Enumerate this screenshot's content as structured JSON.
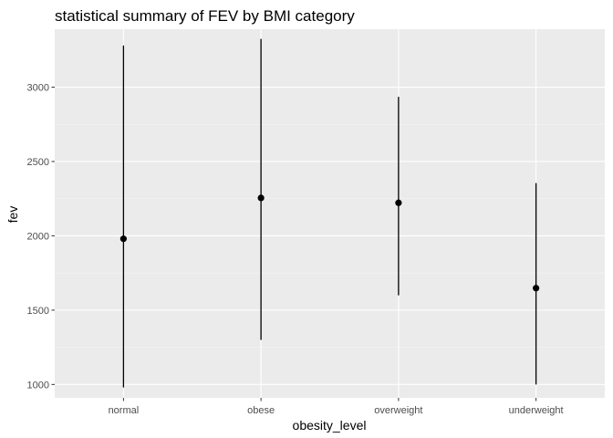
{
  "chart_data": {
    "type": "pointrange",
    "title": "statistical summary of FEV by BMI category",
    "xlabel": "obesity_level",
    "ylabel": "fev",
    "categories": [
      "normal",
      "obese",
      "overweight",
      "underweight"
    ],
    "series": [
      {
        "values": [
          1980,
          2255,
          2222,
          1648
        ],
        "lower": [
          980,
          1300,
          1600,
          1000
        ],
        "upper": [
          3280,
          3325,
          2935,
          2355
        ]
      }
    ],
    "ylim": [
      910,
      3390
    ],
    "yticks": [
      1000,
      1500,
      2000,
      2500,
      3000
    ],
    "grid": true,
    "colors": {
      "panel": "#ebebeb",
      "grid_major": "#ffffff",
      "grid_minor": "#f4f4f4",
      "mark": "#000000"
    }
  }
}
